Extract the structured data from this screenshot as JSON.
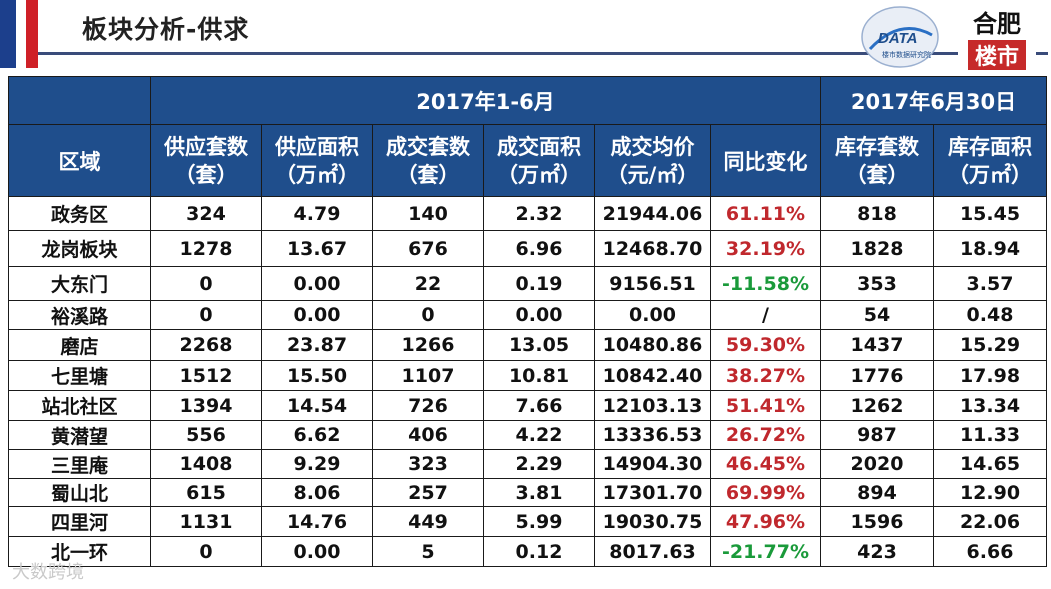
{
  "title": "板块分析-供求",
  "logos": {
    "data_logo_text": "DATA",
    "data_logo_sub": "楼市数据研究院",
    "city_logo_line1": "合肥",
    "city_logo_line2": "楼市"
  },
  "table": {
    "period_header": "2017年1-6月",
    "date_header": "2017年6月30日",
    "columns": [
      {
        "label": "区域"
      },
      {
        "label": "供应套数",
        "unit": "（套）"
      },
      {
        "label": "供应面积",
        "unit": "（万㎡）"
      },
      {
        "label": "成交套数",
        "unit": "（套）"
      },
      {
        "label": "成交面积",
        "unit": "（万㎡）"
      },
      {
        "label": "成交均价",
        "unit": "（元/㎡）"
      },
      {
        "label": "同比变化"
      },
      {
        "label": "库存套数",
        "unit": "（套）"
      },
      {
        "label": "库存面积",
        "unit": "（万㎡）"
      }
    ],
    "rows": [
      {
        "area": "政务区",
        "supply_units": "324",
        "supply_area": "4.79",
        "deal_units": "140",
        "deal_area": "2.32",
        "avg_price": "21944.06",
        "yoy": "61.11%",
        "yoy_color": "red",
        "stock_units": "818",
        "stock_area": "15.45"
      },
      {
        "area": "龙岗板块",
        "supply_units": "1278",
        "supply_area": "13.67",
        "deal_units": "676",
        "deal_area": "6.96",
        "avg_price": "12468.70",
        "yoy": "32.19%",
        "yoy_color": "red",
        "stock_units": "1828",
        "stock_area": "18.94"
      },
      {
        "area": "大东门",
        "supply_units": "0",
        "supply_area": "0.00",
        "deal_units": "22",
        "deal_area": "0.19",
        "avg_price": "9156.51",
        "yoy": "-11.58%",
        "yoy_color": "green",
        "stock_units": "353",
        "stock_area": "3.57"
      },
      {
        "area": "裕溪路",
        "supply_units": "0",
        "supply_area": "0.00",
        "deal_units": "0",
        "deal_area": "0.00",
        "avg_price": "0.00",
        "yoy": "/",
        "yoy_color": "black",
        "stock_units": "54",
        "stock_area": "0.48"
      },
      {
        "area": "磨店",
        "supply_units": "2268",
        "supply_area": "23.87",
        "deal_units": "1266",
        "deal_area": "13.05",
        "avg_price": "10480.86",
        "yoy": "59.30%",
        "yoy_color": "red",
        "stock_units": "1437",
        "stock_area": "15.29"
      },
      {
        "area": "七里塘",
        "supply_units": "1512",
        "supply_area": "15.50",
        "deal_units": "1107",
        "deal_area": "10.81",
        "avg_price": "10842.40",
        "yoy": "38.27%",
        "yoy_color": "red",
        "stock_units": "1776",
        "stock_area": "17.98"
      },
      {
        "area": "站北社区",
        "supply_units": "1394",
        "supply_area": "14.54",
        "deal_units": "726",
        "deal_area": "7.66",
        "avg_price": "12103.13",
        "yoy": "51.41%",
        "yoy_color": "red",
        "stock_units": "1262",
        "stock_area": "13.34"
      },
      {
        "area": "黄潜望",
        "supply_units": "556",
        "supply_area": "6.62",
        "deal_units": "406",
        "deal_area": "4.22",
        "avg_price": "13336.53",
        "yoy": "26.72%",
        "yoy_color": "red",
        "stock_units": "987",
        "stock_area": "11.33"
      },
      {
        "area": "三里庵",
        "supply_units": "1408",
        "supply_area": "9.29",
        "deal_units": "323",
        "deal_area": "2.29",
        "avg_price": "14904.30",
        "yoy": "46.45%",
        "yoy_color": "red",
        "stock_units": "2020",
        "stock_area": "14.65"
      },
      {
        "area": "蜀山北",
        "supply_units": "615",
        "supply_area": "8.06",
        "deal_units": "257",
        "deal_area": "3.81",
        "avg_price": "17301.70",
        "yoy": "69.99%",
        "yoy_color": "red",
        "stock_units": "894",
        "stock_area": "12.90"
      },
      {
        "area": "四里河",
        "supply_units": "1131",
        "supply_area": "14.76",
        "deal_units": "449",
        "deal_area": "5.99",
        "avg_price": "19030.75",
        "yoy": "47.96%",
        "yoy_color": "red",
        "stock_units": "1596",
        "stock_area": "22.06"
      },
      {
        "area": "北一环",
        "supply_units": "0",
        "supply_area": "0.00",
        "deal_units": "5",
        "deal_area": "0.12",
        "avg_price": "8017.63",
        "yoy": "-21.77%",
        "yoy_color": "green",
        "stock_units": "423",
        "stock_area": "6.66"
      }
    ]
  },
  "watermark": "大数跨境",
  "colors": {
    "header_bg": "#1f4e8c",
    "positive": "#c0282d",
    "negative": "#1a9a3a"
  }
}
